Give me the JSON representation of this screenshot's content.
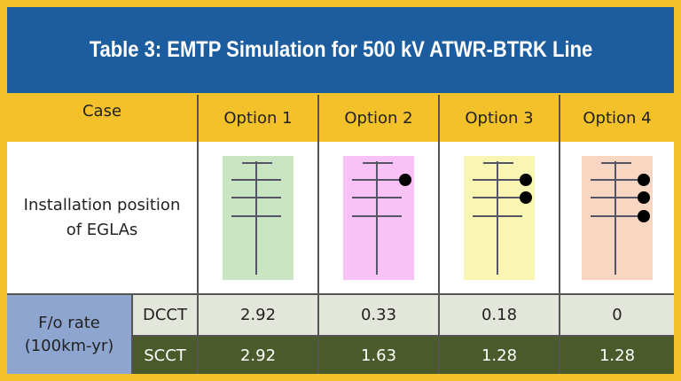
{
  "header": {
    "title": "Table 3: EMTP Simulation for 500 kV ATWR-BTRK Line"
  },
  "table": {
    "header": [
      "Case",
      "Option 1",
      "Option 2",
      "Option 3",
      "Option 4"
    ],
    "installation_label": "Installation position of EGLAs",
    "rate_label": "F/o rate (100km-yr)",
    "rows": [
      [
        "DCCT",
        "2.92",
        "0.33",
        "0.18",
        "0"
      ],
      [
        "SCCT",
        "2.92",
        "1.63",
        "1.28",
        "1.28"
      ]
    ]
  }
}
